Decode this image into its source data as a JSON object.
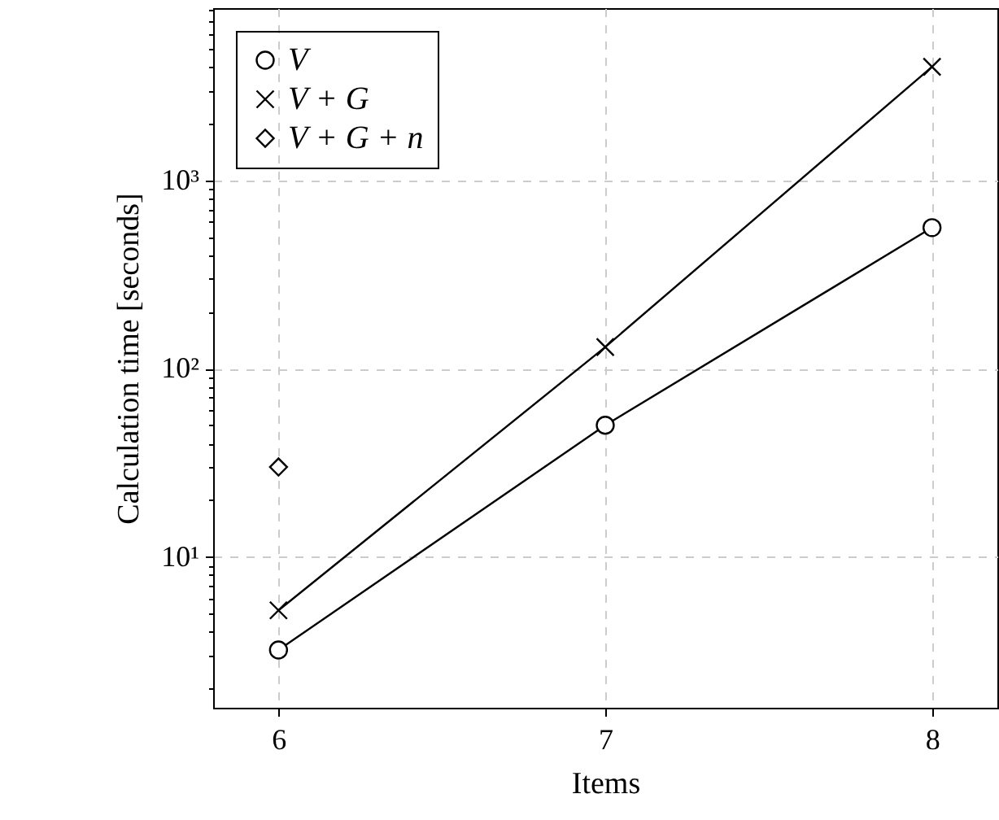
{
  "chart_data": {
    "type": "line",
    "xlabel": "Items",
    "ylabel": "Calculation time [seconds]",
    "log": "y",
    "grid": true,
    "legend": "top left",
    "x": [
      6,
      7,
      8
    ],
    "xlim": [
      5.8,
      8.2
    ],
    "xticks": [
      6,
      7,
      8
    ],
    "ylim": [
      1.58,
      8200
    ],
    "yticks": [
      {
        "value": 2,
        "label": null
      },
      {
        "value": 3,
        "label": null
      },
      {
        "value": 4,
        "label": null
      },
      {
        "value": 5,
        "label": null
      },
      {
        "value": 6,
        "label": null
      },
      {
        "value": 7,
        "label": null
      },
      {
        "value": 8,
        "label": null
      },
      {
        "value": 9,
        "label": null
      },
      {
        "value": 10,
        "label": "10¹"
      },
      {
        "value": 20,
        "label": null
      },
      {
        "value": 30,
        "label": null
      },
      {
        "value": 40,
        "label": null
      },
      {
        "value": 50,
        "label": null
      },
      {
        "value": 60,
        "label": null
      },
      {
        "value": 70,
        "label": null
      },
      {
        "value": 80,
        "label": null
      },
      {
        "value": 90,
        "label": null
      },
      {
        "value": 100,
        "label": "10²"
      },
      {
        "value": 200,
        "label": null
      },
      {
        "value": 300,
        "label": null
      },
      {
        "value": 400,
        "label": null
      },
      {
        "value": 500,
        "label": null
      },
      {
        "value": 600,
        "label": null
      },
      {
        "value": 700,
        "label": null
      },
      {
        "value": 800,
        "label": null
      },
      {
        "value": 900,
        "label": null
      },
      {
        "value": 1000,
        "label": "10³"
      },
      {
        "value": 2000,
        "label": null
      },
      {
        "value": 3000,
        "label": null
      },
      {
        "value": 4000,
        "label": null
      },
      {
        "value": 5000,
        "label": null
      },
      {
        "value": 6000,
        "label": null
      },
      {
        "value": 7000,
        "label": null
      },
      {
        "value": 8000,
        "label": null
      }
    ],
    "series": [
      {
        "name": "V",
        "color": "#000000",
        "marker": "circle",
        "values": [
          3.2,
          50,
          560
        ]
      },
      {
        "name": "V + G",
        "color": "#000000",
        "marker": "cross",
        "values": [
          5.2,
          130,
          4000
        ]
      },
      {
        "name": "V + G + n",
        "color": "#000000",
        "marker": "diamond",
        "x": [
          6
        ],
        "values": [
          30
        ]
      }
    ]
  }
}
